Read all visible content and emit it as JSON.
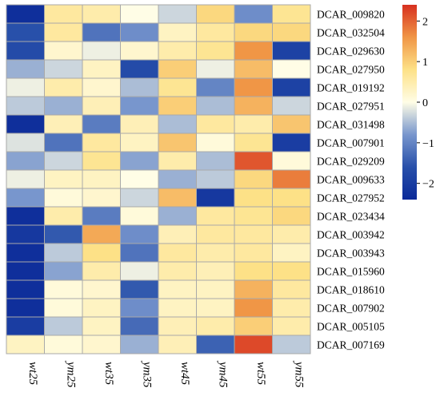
{
  "chart_data": {
    "type": "heatmap",
    "title": "",
    "columns": [
      "wt25",
      "ym25",
      "wt35",
      "ym35",
      "wt45",
      "ym45",
      "wt55",
      "ym55"
    ],
    "rows": [
      "DCAR_009820",
      "DCAR_032504",
      "DCAR_029630",
      "DCAR_027950",
      "DCAR_019192",
      "DCAR_027951",
      "DCAR_031498",
      "DCAR_007901",
      "DCAR_029209",
      "DCAR_009633",
      "DCAR_027952",
      "DCAR_023434",
      "DCAR_003942",
      "DCAR_003943",
      "DCAR_015960",
      "DCAR_018610",
      "DCAR_007902",
      "DCAR_005105",
      "DCAR_007169"
    ],
    "values": [
      [
        -2.3,
        0.6,
        0.5,
        0.0,
        -0.3,
        0.9,
        -0.9,
        0.7
      ],
      [
        -1.6,
        0.6,
        -1.2,
        -0.9,
        0.3,
        0.6,
        0.9,
        0.9
      ],
      [
        -1.7,
        0.2,
        -0.1,
        0.2,
        0.5,
        0.7,
        1.6,
        -1.9
      ],
      [
        -0.6,
        -0.3,
        0.3,
        -1.7,
        1.0,
        -0.1,
        1.2,
        0.0
      ],
      [
        -0.1,
        0.5,
        0.2,
        -0.5,
        0.7,
        -1.0,
        1.6,
        -1.9
      ],
      [
        -0.4,
        -0.6,
        0.4,
        -0.8,
        1.0,
        -0.5,
        1.3,
        -0.3
      ],
      [
        -2.3,
        0.4,
        -1.1,
        0.4,
        -0.5,
        0.6,
        0.5,
        1.1
      ],
      [
        -0.2,
        -1.2,
        0.6,
        0.3,
        1.1,
        0.1,
        0.7,
        -2.0
      ],
      [
        -0.7,
        -0.3,
        0.7,
        -0.7,
        0.5,
        -0.5,
        2.1,
        0.1
      ],
      [
        -0.1,
        0.3,
        0.3,
        0.0,
        -0.6,
        -0.4,
        0.9,
        1.8
      ],
      [
        -0.8,
        0.1,
        0.2,
        -0.3,
        1.2,
        -2.1,
        0.8,
        0.8
      ],
      [
        -2.3,
        0.5,
        -1.1,
        0.1,
        -0.6,
        0.6,
        0.7,
        0.9
      ],
      [
        -2.1,
        -1.5,
        1.4,
        -0.9,
        0.4,
        0.6,
        0.6,
        0.5
      ],
      [
        -2.3,
        -0.4,
        0.8,
        -1.2,
        0.6,
        0.5,
        0.6,
        0.3
      ],
      [
        -2.3,
        -0.7,
        0.5,
        -0.1,
        0.5,
        0.4,
        0.8,
        0.8
      ],
      [
        -2.3,
        0.1,
        0.2,
        -1.5,
        0.3,
        0.3,
        1.3,
        0.6
      ],
      [
        -2.3,
        0.1,
        0.3,
        -0.9,
        0.3,
        0.3,
        1.6,
        0.5
      ],
      [
        -2.0,
        -0.4,
        0.3,
        -1.3,
        0.4,
        0.5,
        1.0,
        0.5
      ],
      [
        0.3,
        0.1,
        0.2,
        -0.6,
        0.4,
        -1.4,
        2.2,
        -0.4
      ]
    ],
    "colorbar": {
      "range": [
        -2.4,
        2.4
      ],
      "ticks": [
        -2,
        -1,
        0,
        1,
        2
      ],
      "tick_labels": [
        "−2",
        "−1",
        "0",
        "1",
        "2"
      ],
      "low_color": "#0b2a99",
      "mid_color": "#fffde6",
      "high_color": "#d7301f"
    },
    "grid": true,
    "legend": "right"
  }
}
